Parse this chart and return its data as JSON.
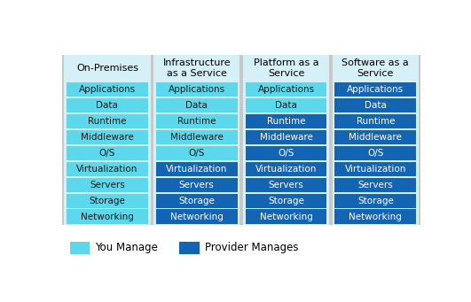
{
  "columns": [
    "On-Premises",
    "Infrastructure\nas a Service",
    "Platform as a\nService",
    "Software as a\nService"
  ],
  "rows": [
    "Applications",
    "Data",
    "Runtime",
    "Middleware",
    "O/S",
    "Virtualization",
    "Servers",
    "Storage",
    "Networking"
  ],
  "light_color": "#5BD8EC",
  "dark_color": "#1464B4",
  "light_text": "#1A1A1A",
  "dark_text": "#FFFFFF",
  "outer_bg": "#C8C8C8",
  "col_bg_color": "#D6F0F8",
  "figure_bg": "#FFFFFF",
  "managed": [
    [
      0,
      0,
      0,
      0,
      0,
      0,
      0,
      0,
      0
    ],
    [
      0,
      0,
      0,
      0,
      0,
      1,
      1,
      1,
      1
    ],
    [
      0,
      0,
      1,
      1,
      1,
      1,
      1,
      1,
      1
    ],
    [
      1,
      1,
      1,
      1,
      1,
      1,
      1,
      1,
      1
    ]
  ],
  "legend_you": "You Manage",
  "legend_provider": "Provider Manages",
  "header_fontsize": 8.0,
  "row_fontsize": 7.5
}
